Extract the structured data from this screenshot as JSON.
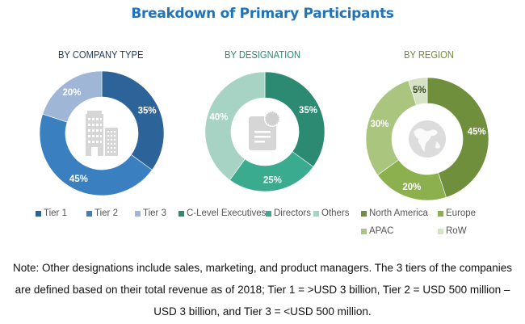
{
  "title": "Breakdown of Primary Participants",
  "chart_data": [
    {
      "type": "pie",
      "title": "BY COMPANY TYPE",
      "title_color": "#1f3b5c",
      "center_icon": "building-icon",
      "categories": [
        "Tier 1",
        "Tier 2",
        "Tier 3"
      ],
      "values": [
        35,
        45,
        20
      ],
      "labels": [
        "35%",
        "45%",
        "20%"
      ],
      "colors": [
        "#2c6399",
        "#3a7fc0",
        "#9fb6d6"
      ],
      "legend": "bottom"
    },
    {
      "type": "pie",
      "title": "BY DESIGNATION",
      "title_color": "#2a8a72",
      "center_icon": "document-badge-icon",
      "categories": [
        "C-Level Executives",
        "Directors",
        "Others"
      ],
      "values": [
        35,
        25,
        40
      ],
      "labels": [
        "35%",
        "25%",
        "40%"
      ],
      "colors": [
        "#2d8a72",
        "#3aab8e",
        "#a7d3c5"
      ],
      "legend": "bottom"
    },
    {
      "type": "pie",
      "title": "BY REGION",
      "title_color": "#6f8f34",
      "center_icon": "globe-icon",
      "categories": [
        "North America",
        "Europe",
        "APAC",
        "RoW"
      ],
      "values": [
        45,
        20,
        30,
        5
      ],
      "labels": [
        "45%",
        "20%",
        "30%",
        "5%"
      ],
      "colors": [
        "#6f8f3c",
        "#8db04f",
        "#aac57e",
        "#d5e2c3"
      ],
      "legend": "bottom"
    }
  ],
  "note": {
    "line1": "Note: Other designations include sales, marketing, and product managers. The 3 tiers of the companies",
    "line2": "are defined based on their total revenue as of 2018; Tier 1 = >USD 3 billion, Tier 2 = USD 500 million –",
    "line3": "USD 3 billion, and Tier 3 = <USD 500 million."
  }
}
